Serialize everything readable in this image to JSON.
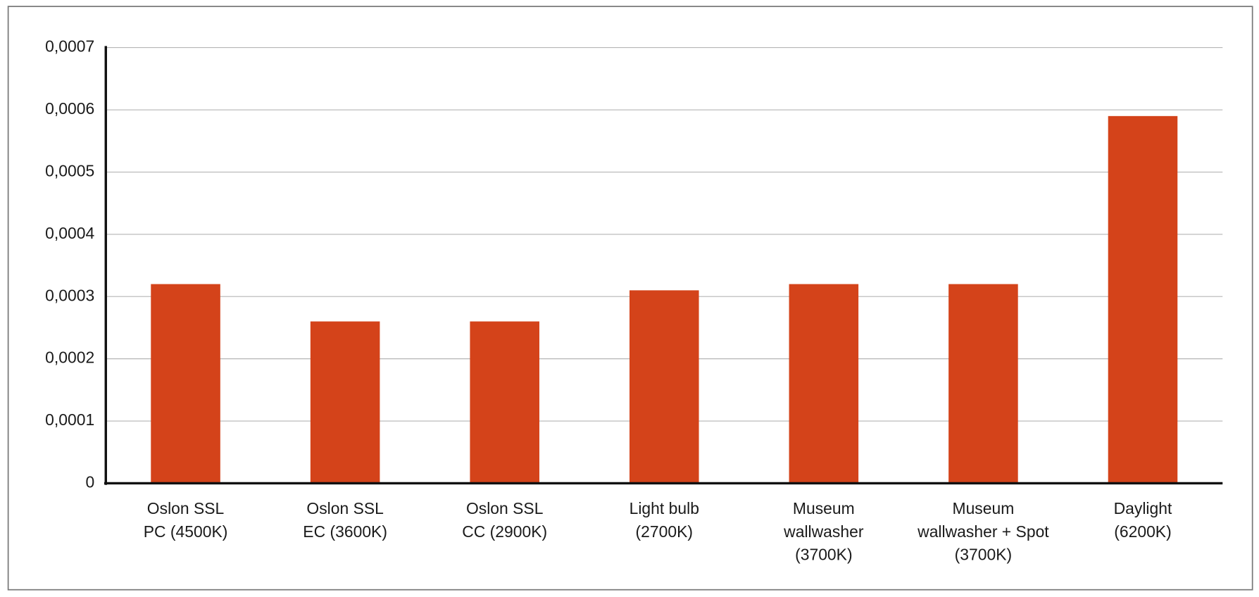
{
  "chart_data": {
    "type": "bar",
    "categories": [
      [
        "Oslon SSL",
        "PC (4500K)"
      ],
      [
        "Oslon SSL",
        "EC (3600K)"
      ],
      [
        "Oslon SSL",
        "CC (2900K)"
      ],
      [
        "Light bulb",
        "(2700K)"
      ],
      [
        "Museum",
        "wallwasher",
        "(3700K)"
      ],
      [
        "Museum",
        "wallwasher + Spot",
        "(3700K)"
      ],
      [
        "Daylight",
        "(6200K)"
      ]
    ],
    "values": [
      0.00032,
      0.00026,
      0.00026,
      0.00031,
      0.00032,
      0.00032,
      0.00059
    ],
    "color": "#d4431a",
    "ylim": [
      0,
      0.0007
    ],
    "yticks": [
      0,
      {
        "value": 0.0001,
        "label": "0,0001"
      },
      {
        "value": 0.0002,
        "label": "0,0002"
      },
      {
        "value": 0.0003,
        "label": "0,0003"
      },
      {
        "value": 0.0004,
        "label": "0,0004"
      },
      {
        "value": 0.0005,
        "label": "0,0005"
      },
      {
        "value": 0.0006,
        "label": "0,0006"
      },
      {
        "value": 0.0007,
        "label": "0,0007"
      }
    ],
    "grid": true
  }
}
